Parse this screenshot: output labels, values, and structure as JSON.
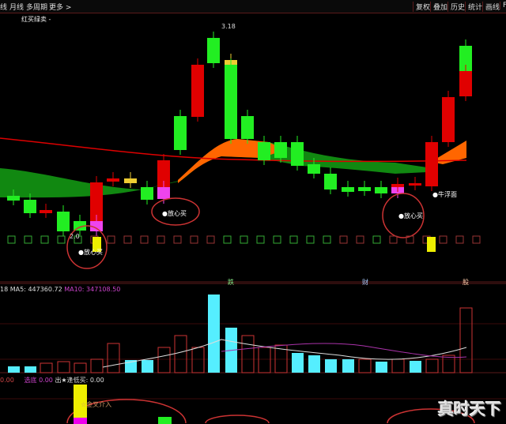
{
  "toolbar": {
    "left": [
      "线",
      "月线",
      "多周期",
      "更多 >"
    ],
    "right": [
      "复权",
      "叠加",
      "历史",
      "统计",
      "画线",
      "F"
    ]
  },
  "main": {
    "indicator_title": "红买绿卖 -",
    "high_label": "3.18",
    "low_label": "2.0",
    "labels": [
      "●放心买",
      "●放心买",
      "●放心买",
      "●牛浮面"
    ]
  },
  "volume": {
    "left": "18",
    "ma5": "MA5: 447360.72",
    "ma10": "MA10: 347108.50",
    "markers": [
      "跌",
      "财",
      "股"
    ]
  },
  "bottom": {
    "v1": "0.00",
    "v2_label": "选底",
    "v2": "0.00",
    "v3": "出★逢低买: 0.00",
    "annotation": "☆金叉介入"
  },
  "watermark": "真时天下",
  "colors": {
    "up": "#e00000",
    "down": "#22ee22",
    "volume": "#55eeff",
    "ma_fill_orange": "#ff6600",
    "ma_fill_green": "#118811"
  }
}
